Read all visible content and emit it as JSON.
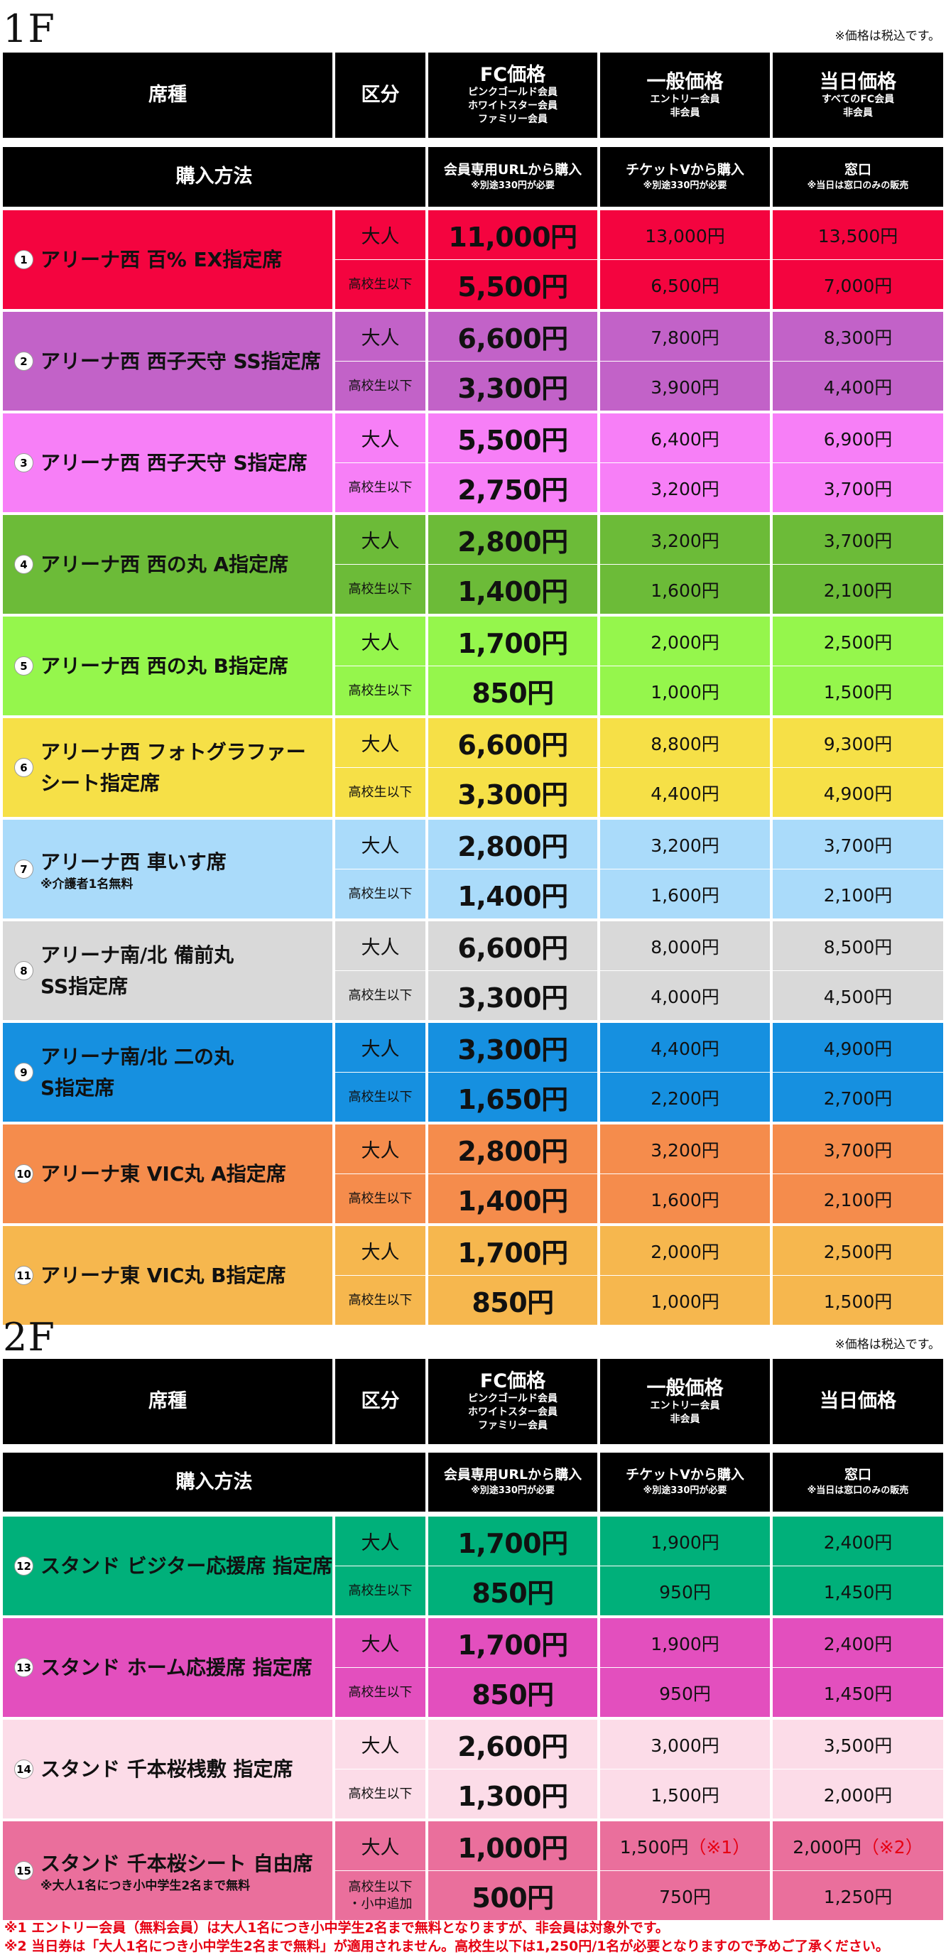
{
  "floors": [
    {
      "label": "1F",
      "tax_note": "※価格は税込です。",
      "header": {
        "seat_type": "席種",
        "category": "区分",
        "fc_price": {
          "title": "FC価格",
          "sub": [
            "ピンクゴールド会員",
            "ホワイトスター会員",
            "ファミリー会員"
          ]
        },
        "general_price": {
          "title": "一般価格",
          "sub": [
            "エントリー会員",
            "非会員"
          ]
        },
        "day_price": {
          "title": "当日価格",
          "sub": [
            "すべてのFC会員",
            "非会員"
          ]
        }
      },
      "purchase": {
        "label": "購入方法",
        "fc": {
          "main": "会員専用URLから購入",
          "note": "※別途330円が必要"
        },
        "general": {
          "main": "チケットVから購入",
          "note": "※別途330円が必要"
        },
        "day": {
          "main": "窓口",
          "note": "※当日は窓口のみの販売"
        }
      },
      "seats": [
        {
          "no": "1",
          "name": "アリーナ西 百% EX指定席",
          "note": "",
          "color": "#f4043f",
          "adult": {
            "fc": "11,000円",
            "general": "13,000円",
            "day": "13,500円"
          },
          "youth": {
            "label": "高校生以下",
            "fc": "5,500円",
            "general": "6,500円",
            "day": "7,000円"
          }
        },
        {
          "no": "2",
          "name": "アリーナ西 西子天守 SS指定席",
          "note": "",
          "color": "#c262c8",
          "adult": {
            "fc": "6,600円",
            "general": "7,800円",
            "day": "8,300円"
          },
          "youth": {
            "label": "高校生以下",
            "fc": "3,300円",
            "general": "3,900円",
            "day": "4,400円"
          }
        },
        {
          "no": "3",
          "name": "アリーナ西 西子天守 S指定席",
          "note": "",
          "color": "#f77ff7",
          "adult": {
            "fc": "5,500円",
            "general": "6,400円",
            "day": "6,900円"
          },
          "youth": {
            "label": "高校生以下",
            "fc": "2,750円",
            "general": "3,200円",
            "day": "3,700円"
          }
        },
        {
          "no": "4",
          "name": "アリーナ西 西の丸 A指定席",
          "note": "",
          "color": "#6cbb38",
          "adult": {
            "fc": "2,800円",
            "general": "3,200円",
            "day": "3,700円"
          },
          "youth": {
            "label": "高校生以下",
            "fc": "1,400円",
            "general": "1,600円",
            "day": "2,100円"
          }
        },
        {
          "no": "5",
          "name": "アリーナ西 西の丸 B指定席",
          "note": "",
          "color": "#95f64c",
          "adult": {
            "fc": "1,700円",
            "general": "2,000円",
            "day": "2,500円"
          },
          "youth": {
            "label": "高校生以下",
            "fc": "850円",
            "general": "1,000円",
            "day": "1,500円"
          }
        },
        {
          "no": "6",
          "name": "アリーナ西 フォトグラファー\nシート指定席",
          "note": "",
          "color": "#f6e047",
          "adult": {
            "fc": "6,600円",
            "general": "8,800円",
            "day": "9,300円"
          },
          "youth": {
            "label": "高校生以下",
            "fc": "3,300円",
            "general": "4,400円",
            "day": "4,900円"
          }
        },
        {
          "no": "7",
          "name": "アリーナ西 車いす席",
          "note": "※介護者1名無料",
          "color": "#aadbfa",
          "adult": {
            "fc": "2,800円",
            "general": "3,200円",
            "day": "3,700円"
          },
          "youth": {
            "label": "高校生以下",
            "fc": "1,400円",
            "general": "1,600円",
            "day": "2,100円"
          }
        },
        {
          "no": "8",
          "name": "アリーナ南/北 備前丸\nSS指定席",
          "note": "",
          "color": "#d9d9d9",
          "adult": {
            "fc": "6,600円",
            "general": "8,000円",
            "day": "8,500円"
          },
          "youth": {
            "label": "高校生以下",
            "fc": "3,300円",
            "general": "4,000円",
            "day": "4,500円"
          }
        },
        {
          "no": "9",
          "name": "アリーナ南/北 二の丸\nS指定席",
          "note": "",
          "color": "#1690e0",
          "adult": {
            "fc": "3,300円",
            "general": "4,400円",
            "day": "4,900円"
          },
          "youth": {
            "label": "高校生以下",
            "fc": "1,650円",
            "general": "2,200円",
            "day": "2,700円"
          }
        },
        {
          "no": "10",
          "name": "アリーナ東 VIC丸 A指定席",
          "note": "",
          "color": "#f58c4c",
          "adult": {
            "fc": "2,800円",
            "general": "3,200円",
            "day": "3,700円"
          },
          "youth": {
            "label": "高校生以下",
            "fc": "1,400円",
            "general": "1,600円",
            "day": "2,100円"
          }
        },
        {
          "no": "11",
          "name": "アリーナ東 VIC丸 B指定席",
          "note": "",
          "color": "#f6b74e",
          "adult": {
            "fc": "1,700円",
            "general": "2,000円",
            "day": "2,500円"
          },
          "youth": {
            "label": "高校生以下",
            "fc": "850円",
            "general": "1,000円",
            "day": "1,500円"
          }
        }
      ]
    },
    {
      "label": "2F",
      "tax_note": "※価格は税込です。",
      "header": {
        "seat_type": "席種",
        "category": "区分",
        "fc_price": {
          "title": "FC価格",
          "sub": [
            "ピンクゴールド会員",
            "ホワイトスター会員",
            "ファミリー会員"
          ]
        },
        "general_price": {
          "title": "一般価格",
          "sub": [
            "エントリー会員",
            "非会員"
          ]
        },
        "day_price": {
          "title": "当日価格",
          "sub": []
        }
      },
      "purchase": {
        "label": "購入方法",
        "fc": {
          "main": "会員専用URLから購入",
          "note": "※別途330円が必要"
        },
        "general": {
          "main": "チケットVから購入",
          "note": "※別途330円が必要"
        },
        "day": {
          "main": "窓口",
          "note": "※当日は窓口のみの販売"
        }
      },
      "seats": [
        {
          "no": "12",
          "name": "スタンド ビジター応援席 指定席",
          "note": "",
          "color": "#00b07a",
          "adult": {
            "fc": "1,700円",
            "general": "1,900円",
            "day": "2,400円"
          },
          "youth": {
            "label": "高校生以下",
            "fc": "850円",
            "general": "950円",
            "day": "1,450円"
          }
        },
        {
          "no": "13",
          "name": "スタンド ホーム応援席 指定席",
          "note": "",
          "color": "#e34fbe",
          "adult": {
            "fc": "1,700円",
            "general": "1,900円",
            "day": "2,400円"
          },
          "youth": {
            "label": "高校生以下",
            "fc": "850円",
            "general": "950円",
            "day": "1,450円"
          }
        },
        {
          "no": "14",
          "name": "スタンド 千本桜桟敷 指定席",
          "note": "",
          "color": "#fcdce8",
          "adult": {
            "fc": "2,600円",
            "general": "3,000円",
            "day": "3,500円"
          },
          "youth": {
            "label": "高校生以下",
            "fc": "1,300円",
            "general": "1,500円",
            "day": "2,000円"
          }
        },
        {
          "no": "15",
          "name": "スタンド 千本桜シート 自由席",
          "note": "※大人1名につき小中学生2名まで無料",
          "color": "#ea6f9c",
          "adult": {
            "fc": "1,000円",
            "general": "1,500円",
            "general_mark": "（※1）",
            "day": "2,000円",
            "day_mark": "（※2）"
          },
          "youth": {
            "label": "高校生以下\n・小中追加",
            "fc": "500円",
            "general": "750円",
            "day": "1,250円"
          }
        }
      ]
    }
  ],
  "adult_label": "大人",
  "footnotes": [
    "※1 エントリー会員（無料会員）は大人1名につき小中学生2名まで無料となりますが、非会員は対象外です。",
    "※2 当日券は「大人1名につき小中学生2名まで無料」が適用されません。高校生以下は1,250円/1名が必要となりますので予めご了承ください。"
  ]
}
